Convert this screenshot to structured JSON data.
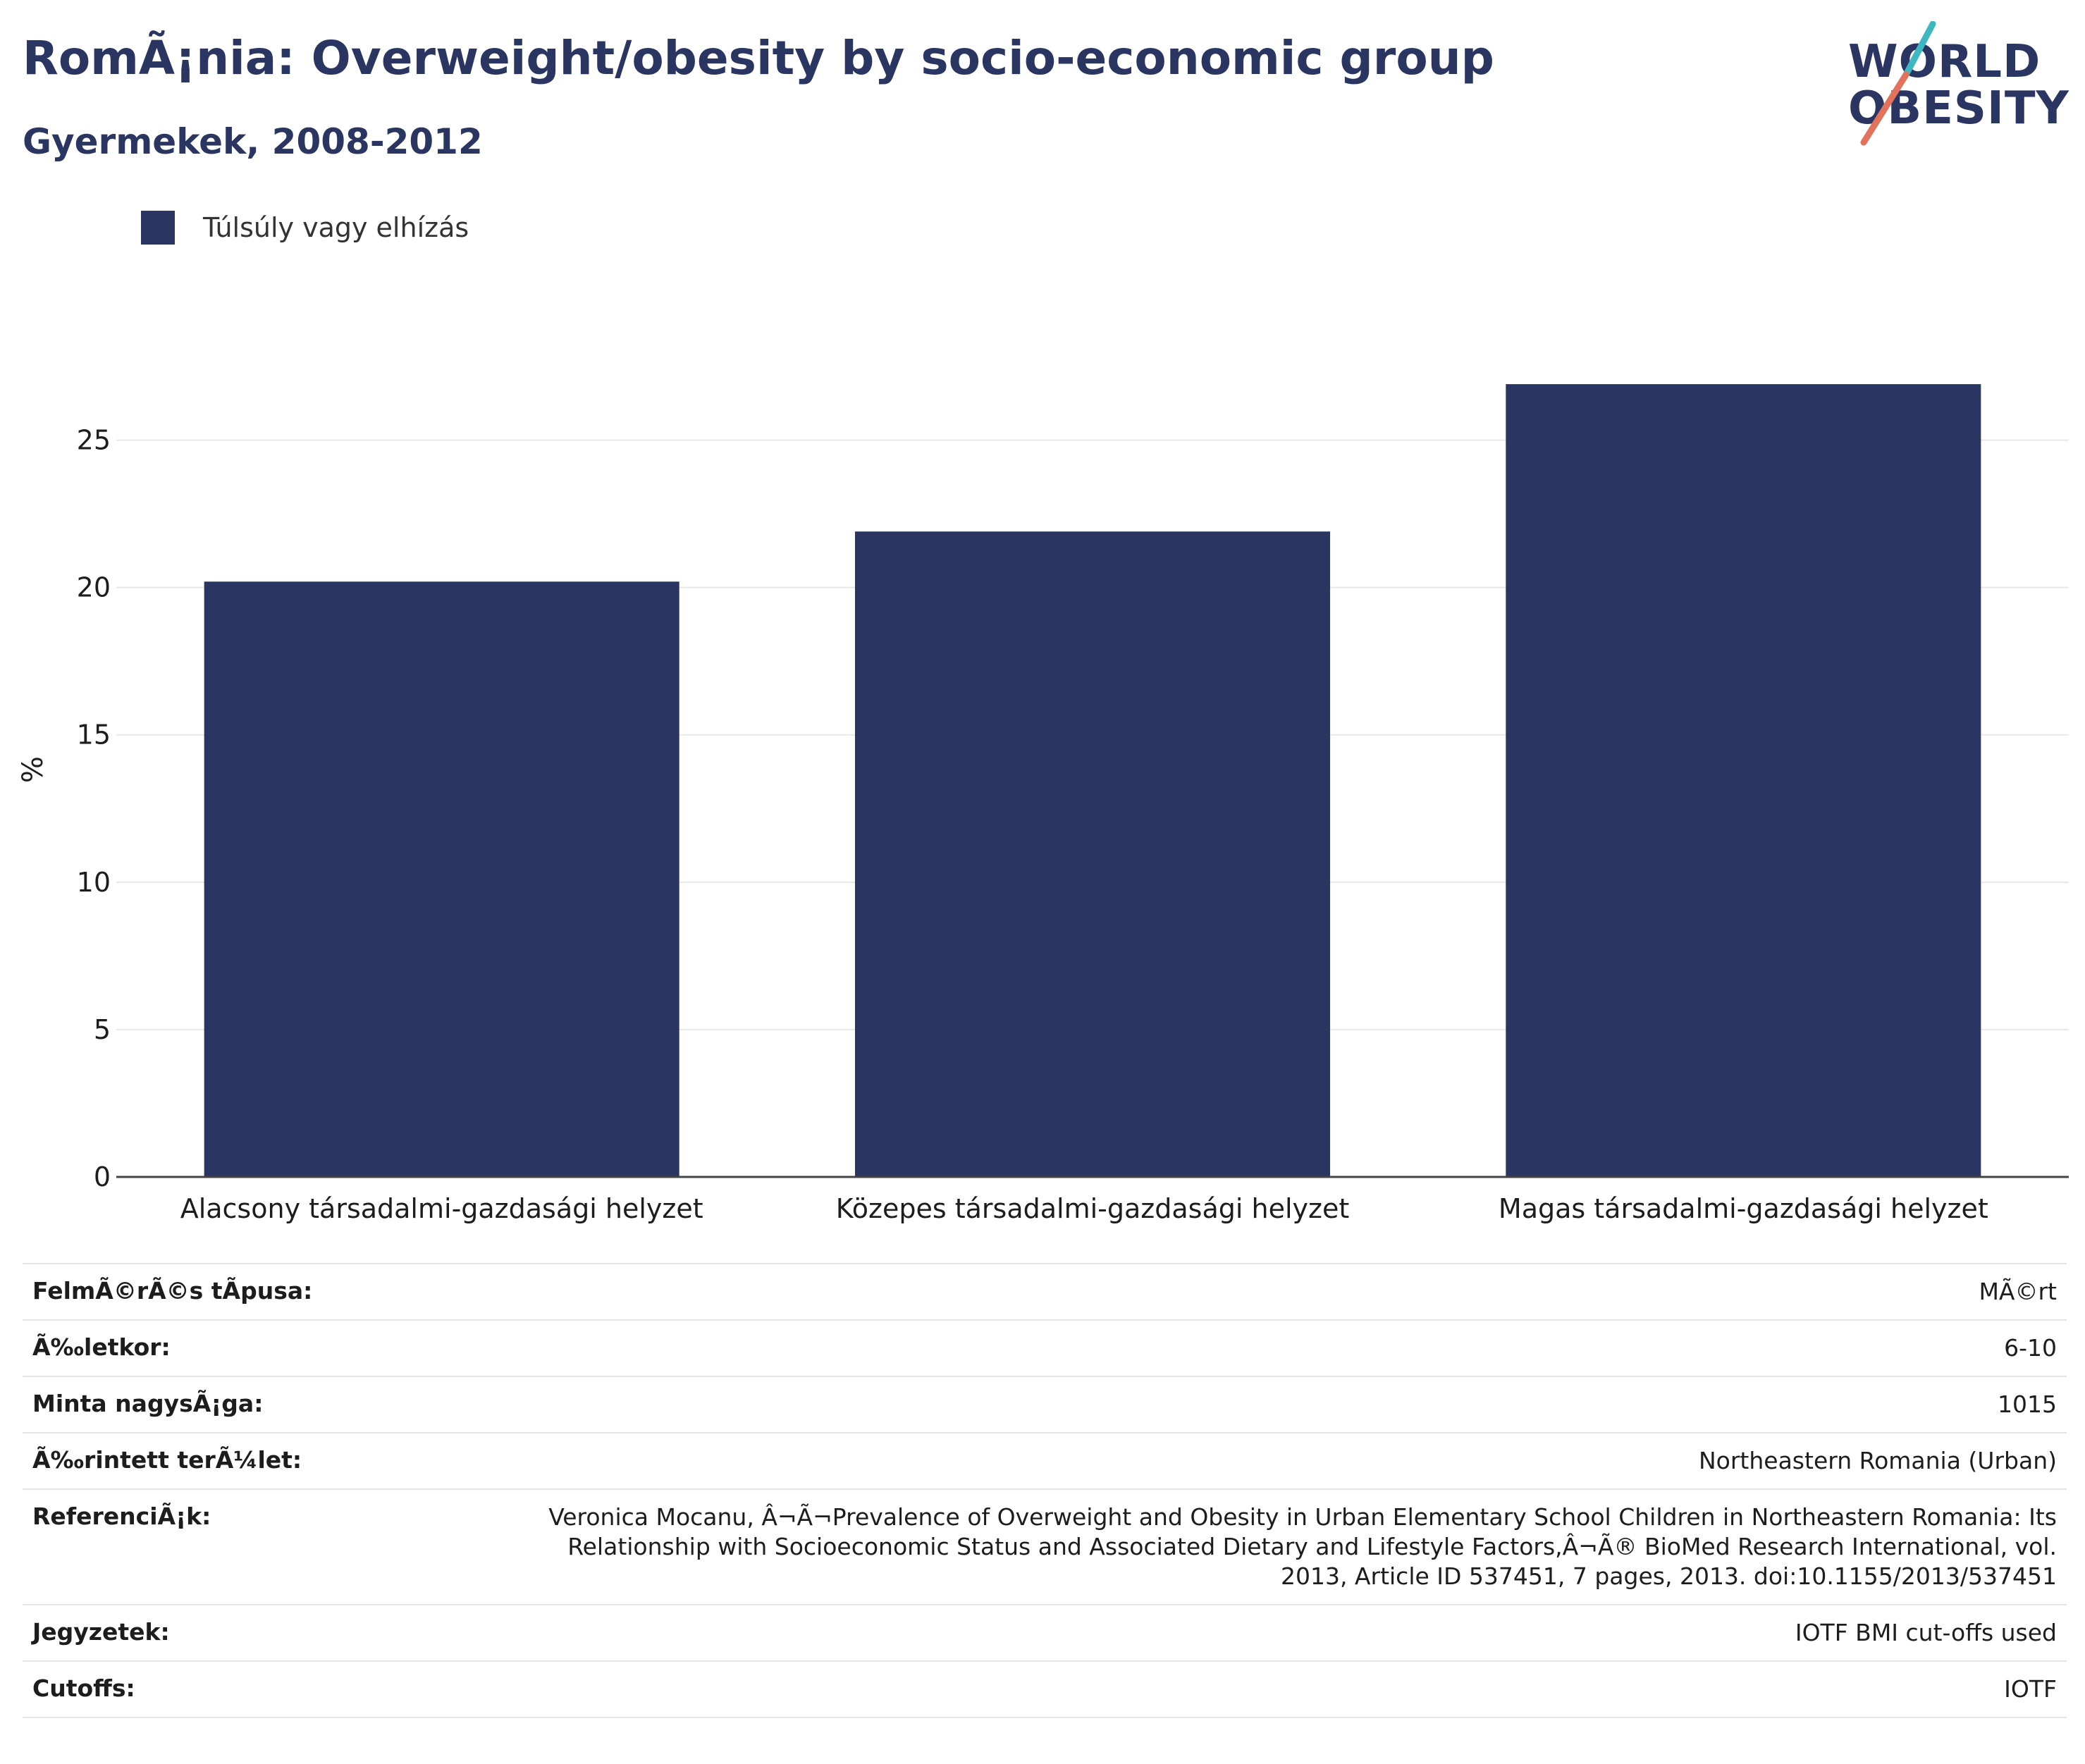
{
  "header": {
    "title": "RomÃ¡nia: Overweight/obesity by socio-economic group",
    "subtitle": "Gyermekek, 2008-2012"
  },
  "logo": {
    "line1": "WORLD",
    "line2": "OBESITY",
    "colors": {
      "slash_top": "#3db8c0",
      "slash_bottom": "#e2725b"
    }
  },
  "legend": {
    "label": "Túlsúly vagy elhízás",
    "color": "#2a3561"
  },
  "chart_data": {
    "type": "bar",
    "categories": [
      "Alacsony társadalmi-gazdasági helyzet",
      "Közepes társadalmi-gazdasági helyzet",
      "Magas társadalmi-gazdasági helyzet"
    ],
    "series": [
      {
        "name": "Túlsúly vagy elhízás",
        "values": [
          20.2,
          21.9,
          26.9
        ]
      }
    ],
    "ylabel": "%",
    "xlabel": "",
    "ylim": [
      0,
      27.5
    ],
    "yticks": [
      0,
      5,
      10,
      15,
      20,
      25
    ],
    "grid": true,
    "legend_position": "top-left",
    "bar_color": "#2a3561"
  },
  "details": [
    {
      "label": "FelmÃ©rÃ©s tÃpusa:",
      "value": "MÃ©rt"
    },
    {
      "label": "Ã‰letkor:",
      "value": "6-10"
    },
    {
      "label": "Minta nagysÃ¡ga:",
      "value": "1015"
    },
    {
      "label": "Ã‰rintett terÃ¼let:",
      "value": "Northeastern Romania (Urban)"
    },
    {
      "label": "ReferenciÃ¡k:",
      "value": "Veronica Mocanu, Â¬Ã¬Prevalence of Overweight and Obesity in Urban Elementary School Children in Northeastern Romania: Its Relationship with Socioeconomic Status and Associated Dietary and Lifestyle Factors,Â¬Ã® BioMed Research International, vol. 2013, Article ID 537451, 7 pages, 2013. doi:10.1155/2013/537451"
    },
    {
      "label": "Jegyzetek:",
      "value": "IOTF BMI cut-offs used"
    },
    {
      "label": "Cutoffs:",
      "value": "IOTF"
    }
  ]
}
